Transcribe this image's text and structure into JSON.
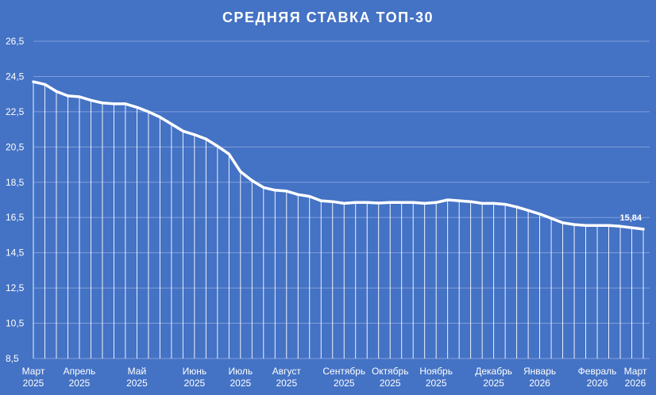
{
  "chart_data": {
    "type": "line",
    "title": "СРЕДНЯЯ СТАВКА ТОП-30",
    "ylim": [
      8.5,
      26.5
    ],
    "yticks": [
      "8,5",
      "10,5",
      "12,5",
      "14,5",
      "16,5",
      "18,5",
      "20,5",
      "22,5",
      "24,5",
      "26,5"
    ],
    "grid": true,
    "drop_lines": true,
    "colors": {
      "background": "#4472c4",
      "line": "#ffffff",
      "grid": "#7f9fdc"
    },
    "x_labels": [
      {
        "month": "Март",
        "year": "2025"
      },
      {
        "month": "Апрель",
        "year": "2025"
      },
      {
        "month": "Май",
        "year": "2025"
      },
      {
        "month": "Июнь",
        "year": "2025"
      },
      {
        "month": "Июль",
        "year": "2025"
      },
      {
        "month": "Август",
        "year": "2025"
      },
      {
        "month": "Сентябрь",
        "year": "2025"
      },
      {
        "month": "Октябрь",
        "year": "2025"
      },
      {
        "month": "Ноябрь",
        "year": "2025"
      },
      {
        "month": "Декабрь",
        "year": "2025"
      },
      {
        "month": "Январь",
        "year": "2026"
      },
      {
        "month": "Февраль",
        "year": "2026"
      },
      {
        "month": "Март",
        "year": "2026"
      }
    ],
    "label_index": [
      0,
      4,
      9,
      14,
      18,
      22,
      27,
      31,
      35,
      40,
      44,
      49,
      53
    ],
    "values": [
      24.2,
      24.05,
      23.65,
      23.4,
      23.35,
      23.15,
      23.0,
      22.95,
      22.95,
      22.75,
      22.5,
      22.2,
      21.8,
      21.4,
      21.2,
      20.95,
      20.55,
      20.1,
      19.1,
      18.6,
      18.2,
      18.05,
      18.0,
      17.8,
      17.7,
      17.45,
      17.4,
      17.3,
      17.35,
      17.35,
      17.32,
      17.35,
      17.35,
      17.35,
      17.3,
      17.35,
      17.5,
      17.45,
      17.4,
      17.3,
      17.3,
      17.25,
      17.1,
      16.9,
      16.7,
      16.45,
      16.2,
      16.1,
      16.05,
      16.05,
      16.05,
      16.0,
      15.92,
      15.84
    ],
    "last_value_label": "15,84"
  }
}
